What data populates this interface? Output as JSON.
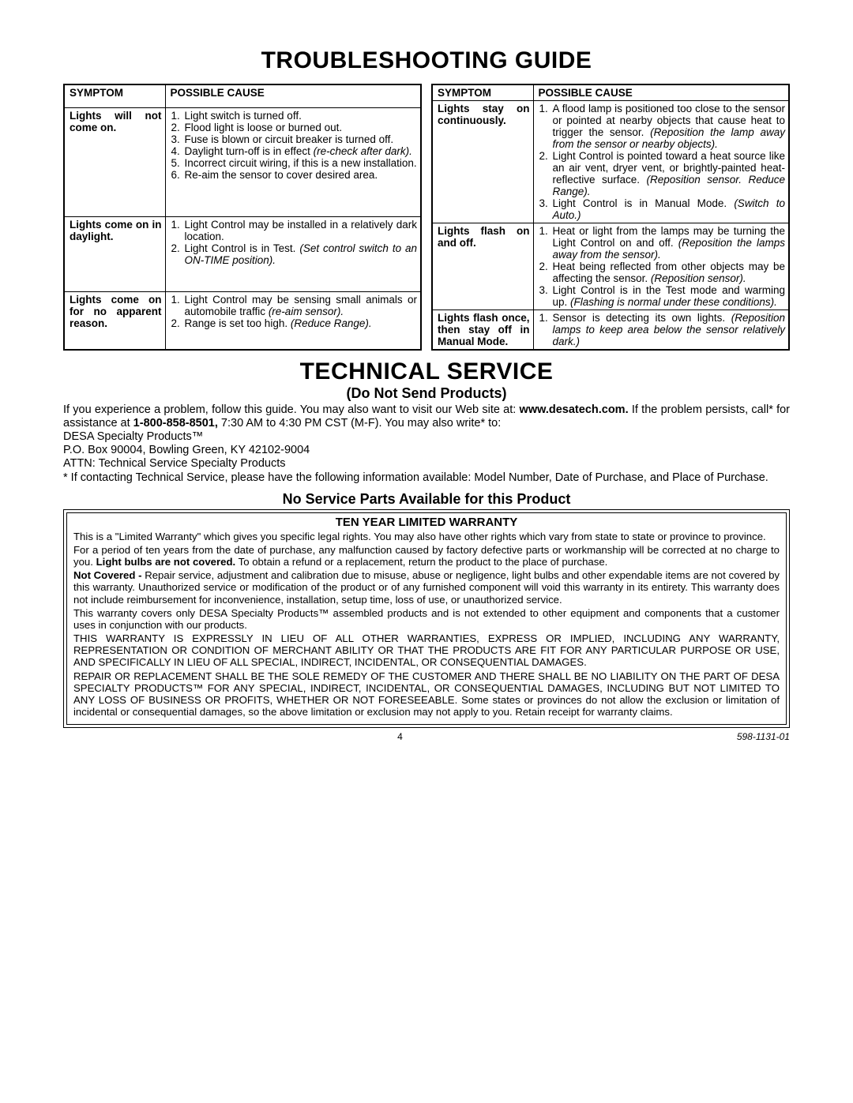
{
  "title_troubleshooting": "TROUBLESHOOTING GUIDE",
  "headers": {
    "symptom": "SYMPTOM",
    "cause": "POSSIBLE CAUSE"
  },
  "left_table": [
    {
      "symptom": "Lights will not come on.",
      "causes": [
        {
          "t": "Light switch is turned off."
        },
        {
          "t": "Flood light is loose or burned out."
        },
        {
          "t": "Fuse is blown or circuit breaker is turned off."
        },
        {
          "t": "Daylight turn-off is in effect ",
          "i": "(re-check after dark)."
        },
        {
          "t": "Incorrect circuit wiring, if this is a new installation."
        },
        {
          "t": "Re-aim the sensor to cover desired area."
        }
      ]
    },
    {
      "symptom": "Lights come on in daylight.",
      "causes": [
        {
          "t": "Light Control may be installed in a relatively dark location."
        },
        {
          "t": "Light Control is in Test. ",
          "i": "(Set control switch to an ON-TIME position)."
        }
      ]
    },
    {
      "symptom": "Lights come on for no apparent reason.",
      "causes": [
        {
          "t": "Light Control may be sensing small animals or automobile traffic ",
          "i": "(re-aim sensor)."
        },
        {
          "t": "Range is set too high. ",
          "i": "(Reduce Range)."
        }
      ]
    }
  ],
  "right_table": [
    {
      "symptom": "Lights stay on continuously.",
      "causes": [
        {
          "t": "A flood lamp is positioned too close to the sensor or pointed at nearby objects that cause heat to trigger the sensor. ",
          "i": "(Reposition the lamp away from the sensor or nearby objects)."
        },
        {
          "t": "Light Control is pointed toward a heat source like an air vent, dryer vent, or brightly-painted heat-reflective surface. ",
          "i": "(Reposition sensor. Reduce Range)."
        },
        {
          "t": "Light Control is in Manual Mode. ",
          "i": "(Switch to Auto.)"
        }
      ]
    },
    {
      "symptom": "Lights flash on and off.",
      "causes": [
        {
          "t": "Heat or light from the lamps may be turning the Light Control on and off. ",
          "i": "(Reposition the lamps away from the sensor)."
        },
        {
          "t": "Heat being reflected from other objects may be affecting the sensor. ",
          "i": "(Reposition sensor)."
        },
        {
          "t": "Light Control is in the Test mode and warming up. ",
          "i": "(Flashing is normal under these conditions)."
        }
      ]
    },
    {
      "symptom": "Lights flash once, then stay off in Manual Mode.",
      "causes": [
        {
          "t": "Sensor is detecting its own lights. ",
          "i": "(Reposition lamps to keep area below the sensor relatively dark.)"
        }
      ]
    }
  ],
  "title_technical": "TECHNICAL SERVICE",
  "do_not_send": "(Do Not Send Products)",
  "tech_paragraph_1a": "If you experience a problem, follow this guide. You may also want to visit our Web site at: ",
  "tech_site": "www.desatech.com.",
  "tech_paragraph_1b": " If the problem persists, call* for assistance at ",
  "tech_phone": "1-800-858-8501,",
  "tech_paragraph_1c": " 7:30 AM to 4:30 PM CST (M-F). You may also write* to:",
  "tech_addr1": "DESA Specialty Products™",
  "tech_addr2": "P.O. Box 90004, Bowling Green, KY 42102-9004",
  "tech_addr3": "ATTN: Technical Service Specialty Products",
  "tech_note": "* If contacting Technical Service, please have the following information available: Model Number, Date of Purchase, and Place of Purchase.",
  "no_parts": "No Service Parts Available for this Product",
  "warranty_title": "TEN YEAR LIMITED WARRANTY",
  "warranty": [
    {
      "plain": "This is a \"Limited Warranty\" which gives you specific legal rights. You may also have other rights which vary from state to state or province to province."
    },
    {
      "pre": "For a period of ten years from the date of purchase, any malfunction caused by factory defective parts or workmanship will be corrected at no charge to you. ",
      "bold": "Light bulbs are not covered.",
      "post": " To obtain a refund or a replacement, return the product to the place of purchase."
    },
    {
      "bold": "Not Covered - ",
      "post": "Repair service, adjustment and calibration due to misuse, abuse or negligence, light bulbs and other expendable items are not covered by this warranty. Unauthorized service or modification of the product or of any furnished component will void this warranty in its entirety. This warranty does not include reimbursement for inconvenience, installation, setup time, loss of use, or unauthorized service."
    },
    {
      "plain": "This warranty covers only DESA Specialty Products™ assembled products and is not extended to other equipment and components that a customer uses in conjunction with our products."
    },
    {
      "plain": "THIS WARRANTY IS EXPRESSLY IN LIEU OF ALL OTHER WARRANTIES, EXPRESS OR IMPLIED, INCLUDING ANY WARRANTY, REPRESENTATION OR CONDITION OF MERCHANT ABILITY OR THAT THE PRODUCTS ARE FIT FOR ANY PARTICULAR PURPOSE OR USE, AND SPECIFICALLY IN LIEU OF ALL SPECIAL, INDIRECT, INCIDENTAL, OR CONSEQUENTIAL DAMAGES."
    },
    {
      "plain": "REPAIR OR REPLACEMENT SHALL BE THE SOLE REMEDY OF THE CUSTOMER AND THERE SHALL BE NO LIABILITY ON THE PART OF DESA SPECIALTY PRODUCTS™ FOR ANY SPECIAL, INDIRECT, INCIDENTAL, OR CONSEQUENTIAL DAMAGES, INCLUDING BUT NOT LIMITED TO ANY LOSS OF BUSINESS OR PROFITS, WHETHER OR NOT FORESEEABLE. Some states or provinces do not allow the exclusion or limitation of incidental or consequential damages, so the above limitation or exclusion may not apply to you. Retain receipt for warranty claims."
    }
  ],
  "page_number": "4",
  "doc_number": "598-1131-01"
}
